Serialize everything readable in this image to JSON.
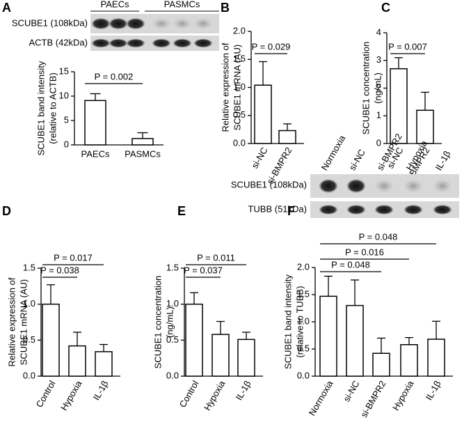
{
  "chart_data": [
    {
      "type": "bar",
      "panel": "A",
      "categories": [
        "PAECs",
        "PASMCs"
      ],
      "values": [
        9.1,
        1.3
      ],
      "errors": [
        1.4,
        1.2
      ],
      "ylim": [
        0,
        15
      ],
      "yticks": [
        0,
        5,
        10,
        15
      ],
      "ylabel": [
        "SCUBE1 band intensity",
        "(relative to ACTB)"
      ],
      "annotations": [
        {
          "label": "P = 0.002",
          "between": [
            0,
            1
          ]
        }
      ],
      "blot": {
        "groups": [
          "PAECs",
          "PASMCs"
        ],
        "rows": [
          "SCUBE1 (108kDa)",
          "ACTB (42kDa)"
        ]
      }
    },
    {
      "type": "bar",
      "panel": "B",
      "categories": [
        "si-NC",
        "si-BMPR2"
      ],
      "values": [
        1.04,
        0.23
      ],
      "errors": [
        0.42,
        0.12
      ],
      "ylim": [
        0,
        2
      ],
      "yticks": [
        {
          "value": 0,
          "label": "0.0"
        },
        0.5,
        {
          "value": 1,
          "label": "1.0"
        },
        1.5,
        {
          "value": 2,
          "label": "2.0"
        }
      ],
      "ylabel": [
        "Relative expression of",
        "SCUBE1 mRNA (AU)"
      ],
      "annotations": [
        {
          "label": "P = 0.029",
          "between": [
            0,
            1
          ]
        }
      ]
    },
    {
      "type": "bar",
      "panel": "C",
      "categories": [
        "si-NC",
        "si-BMPR2"
      ],
      "values": [
        2.7,
        1.2
      ],
      "errors": [
        0.4,
        0.65
      ],
      "ylim": [
        0,
        4
      ],
      "yticks": [
        0,
        1,
        2,
        3,
        4
      ],
      "ylabel": [
        "SCUBE1 concentration",
        "(ng/mL)"
      ],
      "annotations": [
        {
          "label": "P = 0.007",
          "between": [
            0,
            1
          ]
        }
      ]
    },
    {
      "type": "bar",
      "panel": "D",
      "categories": [
        "Control",
        "Hypoxia",
        "IL-1β"
      ],
      "values": [
        1.0,
        0.42,
        0.34
      ],
      "errors": [
        0.27,
        0.19,
        0.1
      ],
      "ylim": [
        0,
        1.5
      ],
      "yticks": [
        {
          "value": 0,
          "label": "0.0"
        },
        0.5,
        {
          "value": 1,
          "label": "1.0"
        },
        1.5
      ],
      "ylabel": [
        "Relative expression of",
        "SCUBE1 mRNA (AU)"
      ],
      "annotations": [
        {
          "label": "P = 0.038",
          "between": [
            0,
            1
          ]
        },
        {
          "label": "P = 0.017",
          "between": [
            0,
            2
          ]
        }
      ]
    },
    {
      "type": "bar",
      "panel": "E",
      "categories": [
        "Control",
        "Hypoxia",
        "IL-1β"
      ],
      "values": [
        1.0,
        0.58,
        0.51
      ],
      "errors": [
        0.16,
        0.18,
        0.1
      ],
      "ylim": [
        0,
        1.5
      ],
      "yticks": [
        {
          "value": 0,
          "label": "0.0"
        },
        0.5,
        {
          "value": 1,
          "label": "1.0"
        },
        1.5
      ],
      "ylabel": [
        "SCUBE1 concentration",
        "(ng/mL)"
      ],
      "annotations": [
        {
          "label": "P = 0.037",
          "between": [
            0,
            1
          ]
        },
        {
          "label": "P = 0.011",
          "between": [
            0,
            2
          ]
        }
      ]
    },
    {
      "type": "bar",
      "panel": "F",
      "categories": [
        "Normoxia",
        "si-NC",
        "si-BMPR2",
        "Hypoxia",
        "IL-1β"
      ],
      "values": [
        1.47,
        1.3,
        0.42,
        0.58,
        0.68
      ],
      "errors": [
        0.37,
        0.47,
        0.28,
        0.13,
        0.33
      ],
      "ylim": [
        0,
        2
      ],
      "yticks": [
        {
          "value": 0,
          "label": "0.0"
        },
        0.5,
        {
          "value": 1,
          "label": "1.0"
        },
        1.5,
        {
          "value": 2,
          "label": "2.0"
        }
      ],
      "ylabel": [
        "SCUBE1 band intensity",
        "(relative to TUBB)"
      ],
      "annotations": [
        {
          "label": "P = 0.048",
          "between": [
            0,
            2
          ]
        },
        {
          "label": "P = 0.016",
          "between": [
            0,
            3
          ]
        },
        {
          "label": "P = 0.048",
          "between": [
            0,
            4
          ]
        }
      ],
      "blot": {
        "lanes": [
          "Normoxia",
          "si-NC",
          "si-BMPR2",
          "Hypoxia",
          "IL-1β"
        ],
        "rows": [
          "SCUBE1 (108kDa)",
          "TUBB (51kDa)"
        ]
      }
    }
  ]
}
